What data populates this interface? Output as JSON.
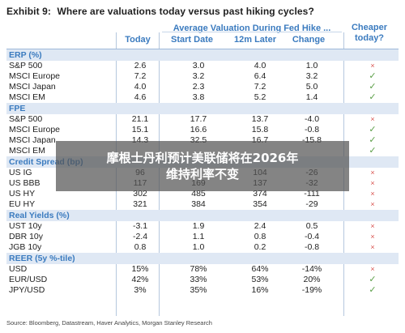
{
  "exhibit": {
    "number": "Exhibit 9:",
    "question": "Where are valuations today versus past hiking cycles?"
  },
  "headers": {
    "group": "Average Valuation During Fed Hike ...",
    "today": "Today",
    "start_date": "Start Date",
    "later": "12m Later",
    "change": "Change",
    "cheaper_line1": "Cheaper",
    "cheaper_line2": "today?"
  },
  "sections": [
    {
      "title": "ERP (%)",
      "rows": [
        {
          "label": "S&P 500",
          "today": "2.6",
          "start": "3.0",
          "later": "4.0",
          "change": "1.0",
          "cheaper": "cross"
        },
        {
          "label": "MSCI Europe",
          "today": "7.2",
          "start": "3.2",
          "later": "6.4",
          "change": "3.2",
          "cheaper": "check"
        },
        {
          "label": "MSCI Japan",
          "today": "4.0",
          "start": "2.3",
          "later": "7.2",
          "change": "5.0",
          "cheaper": "check"
        },
        {
          "label": "MSCI EM",
          "today": "4.6",
          "start": "3.8",
          "later": "5.2",
          "change": "1.4",
          "cheaper": "check"
        }
      ]
    },
    {
      "title": "FPE",
      "rows": [
        {
          "label": "S&P 500",
          "today": "21.1",
          "start": "17.7",
          "later": "13.7",
          "change": "-4.0",
          "cheaper": "cross"
        },
        {
          "label": "MSCI Europe",
          "today": "15.1",
          "start": "16.6",
          "later": "15.8",
          "change": "-0.8",
          "cheaper": "check"
        },
        {
          "label": "MSCI Japan",
          "today": "14.3",
          "start": "32.5",
          "later": "16.7",
          "change": "-15.8",
          "cheaper": "check"
        },
        {
          "label": "MSCI EM",
          "today": "",
          "start": "",
          "later": "",
          "change": "",
          "cheaper": "check"
        }
      ]
    },
    {
      "title": "Credit Spread (bp)",
      "rows": [
        {
          "label": "US IG",
          "today": "96",
          "start": "",
          "later": "104",
          "change": "-26",
          "cheaper": "cross"
        },
        {
          "label": "US BBB",
          "today": "117",
          "start": "169",
          "later": "137",
          "change": "-32",
          "cheaper": "cross"
        },
        {
          "label": "US HY",
          "today": "302",
          "start": "485",
          "later": "374",
          "change": "-111",
          "cheaper": "cross"
        },
        {
          "label": "EU HY",
          "today": "321",
          "start": "384",
          "later": "354",
          "change": "-29",
          "cheaper": "cross"
        }
      ]
    },
    {
      "title": "Real Yields (%)",
      "rows": [
        {
          "label": "UST 10y",
          "today": "-3.1",
          "start": "1.9",
          "later": "2.4",
          "change": "0.5",
          "cheaper": "cross"
        },
        {
          "label": "DBR 10y",
          "today": "-2.4",
          "start": "1.1",
          "later": "0.8",
          "change": "-0.4",
          "cheaper": "cross"
        },
        {
          "label": "JGB 10y",
          "today": "0.8",
          "start": "1.0",
          "later": "0.2",
          "change": "-0.8",
          "cheaper": "cross"
        }
      ]
    },
    {
      "title": "REER (5y %-tile)",
      "rows": [
        {
          "label": "USD",
          "today": "15%",
          "start": "78%",
          "later": "64%",
          "change": "-14%",
          "cheaper": "cross"
        },
        {
          "label": "EUR/USD",
          "today": "42%",
          "start": "33%",
          "later": "53%",
          "change": "20%",
          "cheaper": "check"
        },
        {
          "label": "JPY/USD",
          "today": "3%",
          "start": "35%",
          "later": "16%",
          "change": "-19%",
          "cheaper": "check"
        }
      ]
    }
  ],
  "source_note": "Source: Bloomberg, Datastream, Haver Analytics, Morgan Stanley Research",
  "overlay": {
    "line1": "摩根士丹利预计美联储将在2026年",
    "line2": "维持利率不变"
  },
  "icons": {
    "check": "✓",
    "cross": "×"
  },
  "colors": {
    "accent": "#3b7bbf",
    "section_bg": "#dfe8f4",
    "check": "#5a9e46",
    "cross": "#d9534f"
  }
}
